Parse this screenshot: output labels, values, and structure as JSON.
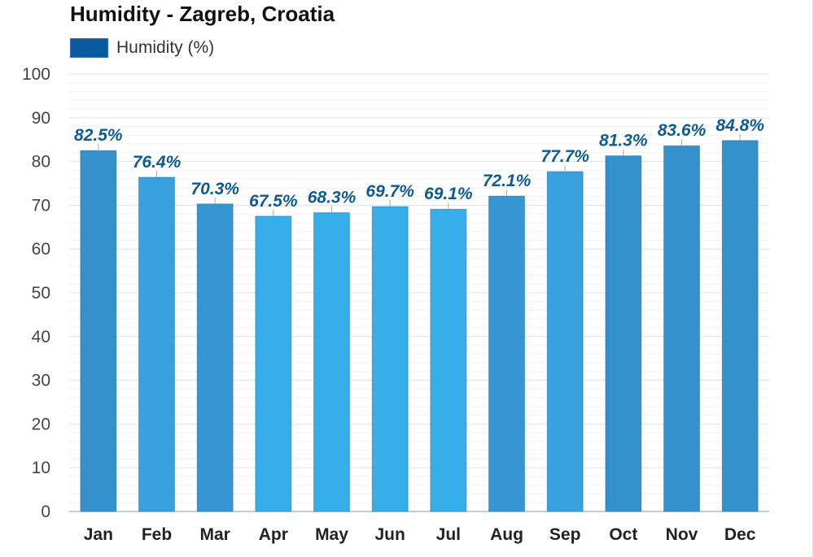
{
  "chart_data": {
    "type": "bar",
    "title": "Humidity - Zagreb, Croatia",
    "legend": [
      {
        "label": "Humidity (%)",
        "color": "#0a5aa0"
      }
    ],
    "legend_position": "top-left",
    "categories": [
      "Jan",
      "Feb",
      "Mar",
      "Apr",
      "May",
      "Jun",
      "Jul",
      "Aug",
      "Sep",
      "Oct",
      "Nov",
      "Dec"
    ],
    "values": [
      82.5,
      76.4,
      70.3,
      67.5,
      68.3,
      69.7,
      69.1,
      72.1,
      77.7,
      81.3,
      83.6,
      84.8
    ],
    "data_labels": [
      "82.5%",
      "76.4%",
      "70.3%",
      "67.5%",
      "68.3%",
      "69.7%",
      "69.1%",
      "72.1%",
      "77.7%",
      "81.3%",
      "83.6%",
      "84.8%"
    ],
    "bar_colors": [
      "#3591cc",
      "#39a2de",
      "#3596d2",
      "#35aeea",
      "#35aeea",
      "#35aeea",
      "#35aeea",
      "#3596d2",
      "#39a2de",
      "#3591cc",
      "#3591cc",
      "#3591cc"
    ],
    "ylim": [
      0,
      100
    ],
    "yticks": [
      0,
      10,
      20,
      30,
      40,
      50,
      60,
      70,
      80,
      90,
      100
    ],
    "xlabel": "",
    "ylabel": "",
    "grid": true
  }
}
